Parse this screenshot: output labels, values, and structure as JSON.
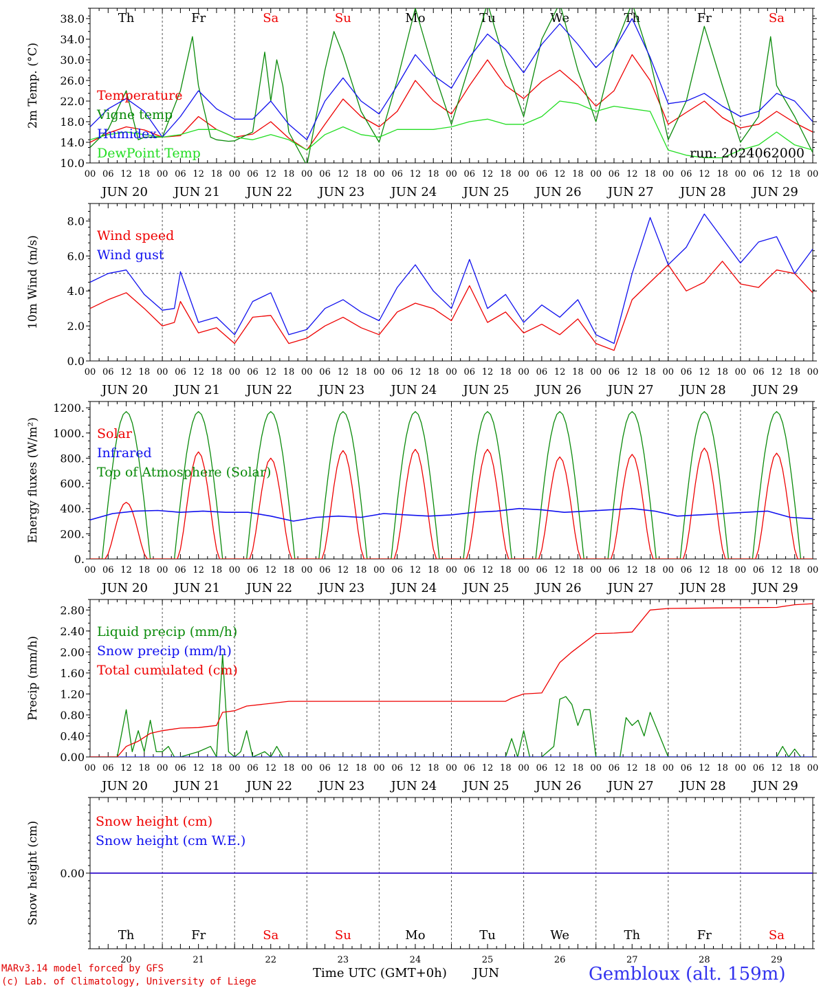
{
  "colors": {
    "red": "#ee0000",
    "green": "#0a8a0a",
    "blue": "#1010ee",
    "lightgreen": "#22dd22",
    "weekend": "#ee0000",
    "weekday": "#000000",
    "station": "#3333ee"
  },
  "days": {
    "names": [
      "Th",
      "Fr",
      "Sa",
      "Su",
      "Mo",
      "Tu",
      "We",
      "Th",
      "Fr",
      "Sa"
    ],
    "weekend": [
      false,
      false,
      true,
      true,
      false,
      false,
      false,
      false,
      false,
      true
    ],
    "dates": [
      "JUN 20",
      "JUN 21",
      "JUN 22",
      "JUN 23",
      "JUN 24",
      "JUN 25",
      "JUN 26",
      "JUN 27",
      "JUN 28",
      "JUN 29"
    ],
    "numbers": [
      "20",
      "21",
      "22",
      "23",
      "24",
      "25",
      "26",
      "27",
      "28",
      "29"
    ],
    "hour_ticks": [
      "00",
      "06",
      "12",
      "18"
    ],
    "final_hour": "00"
  },
  "footer": {
    "model": "MARv3.14 model forced by GFS",
    "copyright": "(c) Lab. of Climatology, University of Liege",
    "time_label": "Time UTC (GMT+0h)",
    "month": "JUN",
    "station": "Gembloux (alt. 159m)"
  },
  "chart_data": [
    {
      "id": "temperature",
      "type": "line",
      "ylabel": "2m Temp. (°C)",
      "ylim": [
        10,
        40
      ],
      "yticks": [
        "10.0",
        "14.0",
        "18.0",
        "22.0",
        "26.0",
        "30.0",
        "34.0",
        "38.0"
      ],
      "run_label": "run: 2024062000",
      "show_day_names": true,
      "legend": [
        {
          "name": "Temperature",
          "color": "red"
        },
        {
          "name": "Vigne temp",
          "color": "green"
        },
        {
          "name": "Humidex",
          "color": "blue"
        },
        {
          "name": "DewPoint Temp",
          "color": "lightgreen"
        }
      ],
      "series": [
        {
          "name": "Temperature",
          "color": "red",
          "x": [
            0,
            6,
            12,
            18,
            24,
            30,
            36,
            42,
            48,
            54,
            60,
            66,
            72,
            78,
            84,
            90,
            96,
            102,
            108,
            114,
            120,
            126,
            132,
            138,
            144,
            150,
            156,
            162,
            168,
            174,
            180,
            186,
            192,
            198,
            204,
            210,
            216,
            222,
            228,
            234,
            240
          ],
          "values": [
            14.0,
            15.8,
            17.0,
            16.4,
            15.0,
            15.3,
            19.0,
            16.5,
            15.0,
            15.6,
            18.0,
            14.8,
            12.5,
            17.5,
            22.4,
            19.0,
            17.0,
            20.0,
            26.0,
            22.0,
            19.5,
            25.0,
            30.0,
            25.0,
            22.5,
            25.8,
            28.0,
            25.0,
            21.0,
            24.0,
            31.0,
            26.0,
            17.5,
            19.8,
            22.0,
            18.8,
            16.8,
            17.5,
            20.0,
            17.8,
            16.0
          ]
        },
        {
          "name": "Vigne temp",
          "color": "green",
          "x": [
            0,
            6,
            12,
            16,
            18,
            24,
            30,
            34,
            36,
            40,
            42,
            46,
            48,
            54,
            58,
            60,
            62,
            64,
            66,
            72,
            78,
            81,
            84,
            90,
            96,
            102,
            108,
            114,
            120,
            126,
            132,
            138,
            144,
            150,
            156,
            162,
            168,
            174,
            180,
            186,
            192,
            198,
            204,
            210,
            216,
            222,
            226,
            228,
            234,
            240
          ],
          "values": [
            13.0,
            16.5,
            24.0,
            14.5,
            15.0,
            15.0,
            24.0,
            34.5,
            25.0,
            15.0,
            14.5,
            14.2,
            14.3,
            16.0,
            31.5,
            22.0,
            30.0,
            25.0,
            16.0,
            9.5,
            28.0,
            35.5,
            31.0,
            20.0,
            14.0,
            26.0,
            40.0,
            28.0,
            17.5,
            29.0,
            41.0,
            29.0,
            19.0,
            34.0,
            41.0,
            28.0,
            18.0,
            32.0,
            41.0,
            30.0,
            14.5,
            22.0,
            36.5,
            25.0,
            14.0,
            19.0,
            34.5,
            25.0,
            19.0,
            12.0
          ]
        },
        {
          "name": "Humidex",
          "color": "blue",
          "x": [
            0,
            6,
            12,
            18,
            24,
            30,
            36,
            42,
            48,
            54,
            60,
            66,
            72,
            78,
            84,
            90,
            96,
            102,
            108,
            114,
            120,
            126,
            132,
            138,
            144,
            150,
            156,
            162,
            168,
            174,
            180,
            186,
            192,
            198,
            204,
            210,
            216,
            222,
            228,
            234,
            240
          ],
          "values": [
            17.0,
            20.5,
            22.5,
            20.0,
            15.0,
            19.0,
            24.0,
            20.5,
            18.5,
            18.5,
            22.0,
            17.5,
            14.5,
            22.0,
            26.5,
            22.0,
            19.5,
            25.0,
            31.0,
            27.0,
            24.5,
            30.5,
            35.0,
            32.0,
            27.5,
            33.0,
            37.0,
            33.0,
            28.5,
            32.0,
            38.0,
            30.5,
            21.5,
            22.0,
            23.5,
            21.0,
            19.0,
            20.0,
            23.5,
            22.0,
            18.0
          ]
        },
        {
          "name": "DewPoint Temp",
          "color": "lightgreen",
          "x": [
            0,
            6,
            12,
            18,
            24,
            30,
            36,
            42,
            48,
            54,
            60,
            66,
            72,
            78,
            84,
            90,
            96,
            102,
            108,
            114,
            120,
            126,
            132,
            138,
            144,
            150,
            156,
            162,
            168,
            174,
            180,
            186,
            192,
            198,
            204,
            210,
            216,
            222,
            228,
            234,
            240
          ],
          "values": [
            14.5,
            15.5,
            16.0,
            15.5,
            15.0,
            15.5,
            16.5,
            16.5,
            15.0,
            14.5,
            15.5,
            14.5,
            12.5,
            15.5,
            17.0,
            15.5,
            15.0,
            16.5,
            16.5,
            16.5,
            17.0,
            18.0,
            18.5,
            17.5,
            17.5,
            19.0,
            22.0,
            21.5,
            20.0,
            21.0,
            20.5,
            20.0,
            12.5,
            11.5,
            11.0,
            11.0,
            12.5,
            13.5,
            16.0,
            13.5,
            12.5
          ]
        }
      ]
    },
    {
      "id": "wind",
      "type": "line",
      "ylabel": "10m Wind (m/s)",
      "ylim": [
        0,
        9
      ],
      "yticks": [
        "0.0",
        "2.0",
        "4.0",
        "6.0",
        "8.0"
      ],
      "reference_line": 5.0,
      "legend": [
        {
          "name": "Wind speed",
          "color": "red"
        },
        {
          "name": "Wind gust",
          "color": "blue"
        }
      ],
      "series": [
        {
          "name": "Wind speed",
          "color": "red",
          "x": [
            0,
            6,
            12,
            18,
            24,
            28,
            30,
            36,
            42,
            48,
            54,
            60,
            66,
            72,
            78,
            84,
            90,
            96,
            102,
            108,
            114,
            120,
            126,
            132,
            138,
            144,
            150,
            156,
            162,
            168,
            174,
            180,
            186,
            192,
            198,
            204,
            210,
            216,
            222,
            228,
            234,
            240
          ],
          "values": [
            3.0,
            3.5,
            3.9,
            3.0,
            2.0,
            2.2,
            3.4,
            1.6,
            1.9,
            1.0,
            2.5,
            2.6,
            1.0,
            1.3,
            2.0,
            2.5,
            1.9,
            1.5,
            2.8,
            3.3,
            3.0,
            2.3,
            4.3,
            2.2,
            2.8,
            1.6,
            2.1,
            1.5,
            2.4,
            1.0,
            0.6,
            3.5,
            4.5,
            5.5,
            4.0,
            4.5,
            5.7,
            4.4,
            4.2,
            5.2,
            5.0,
            3.9
          ]
        },
        {
          "name": "Wind gust",
          "color": "blue",
          "x": [
            0,
            6,
            12,
            18,
            24,
            28,
            30,
            36,
            42,
            48,
            54,
            60,
            66,
            72,
            78,
            84,
            90,
            96,
            102,
            108,
            114,
            120,
            126,
            132,
            138,
            144,
            150,
            156,
            162,
            168,
            174,
            180,
            186,
            192,
            198,
            204,
            210,
            216,
            222,
            228,
            234,
            240
          ],
          "values": [
            4.5,
            5.0,
            5.2,
            3.8,
            2.9,
            3.0,
            5.1,
            2.2,
            2.5,
            1.5,
            3.4,
            3.9,
            1.5,
            1.8,
            3.0,
            3.5,
            2.8,
            2.3,
            4.2,
            5.5,
            4.0,
            3.0,
            5.8,
            3.0,
            3.8,
            2.2,
            3.2,
            2.5,
            3.5,
            1.5,
            1.0,
            5.0,
            8.2,
            5.5,
            6.5,
            8.4,
            7.0,
            5.6,
            6.8,
            7.1,
            5.0,
            6.4
          ]
        }
      ]
    },
    {
      "id": "energy",
      "type": "line",
      "ylabel": "Energy fluxes (W/m²)",
      "ylim": [
        0,
        1250
      ],
      "yticks": [
        "0.",
        "200.",
        "400.",
        "600.",
        "800.",
        "1000.",
        "1200."
      ],
      "legend": [
        {
          "name": "Solar",
          "color": "red"
        },
        {
          "name": "Infrared",
          "color": "blue"
        },
        {
          "name": "Top of Atmosphere (Solar)",
          "color": "green"
        }
      ],
      "toa_peak": 1170,
      "solar_daily_peaks": [
        450,
        850,
        800,
        860,
        870,
        870,
        810,
        830,
        880,
        840
      ],
      "infrared": [
        310,
        360,
        380,
        385,
        370,
        380,
        370,
        370,
        340,
        300,
        330,
        340,
        330,
        360,
        350,
        340,
        350,
        370,
        380,
        400,
        390,
        370,
        380,
        390,
        400,
        380,
        340,
        350,
        360,
        370,
        380,
        330,
        320
      ]
    },
    {
      "id": "precip",
      "type": "line",
      "ylabel": "Precip (mm/h)",
      "ylim": [
        0,
        3.0
      ],
      "yticks": [
        "0.00",
        "0.40",
        "0.80",
        "1.20",
        "1.60",
        "2.00",
        "2.40",
        "2.80"
      ],
      "legend": [
        {
          "name": "Liquid precip (mm/h)",
          "color": "green"
        },
        {
          "name": "Snow precip (mm/h)",
          "color": "blue"
        },
        {
          "name": "Total cumulated (cm)",
          "color": "red"
        }
      ],
      "series": [
        {
          "name": "Liquid precip (mm/h)",
          "color": "green",
          "x": [
            0,
            9,
            12,
            14,
            16,
            18,
            20,
            22,
            24,
            26,
            28,
            30,
            36,
            40,
            42,
            44,
            45,
            46,
            48,
            50,
            52,
            54,
            58,
            60,
            62,
            64,
            66,
            72,
            120,
            138,
            140,
            142,
            144,
            146,
            150,
            154,
            156,
            158,
            160,
            162,
            164,
            166,
            168,
            174,
            176,
            178,
            180,
            182,
            184,
            186,
            192,
            228,
            230,
            232,
            234,
            236,
            240
          ],
          "values": [
            0,
            0,
            0.9,
            0.1,
            0.5,
            0.1,
            0.7,
            0.1,
            0.1,
            0.2,
            0,
            0,
            0.1,
            0.2,
            0,
            1.95,
            1.0,
            0.1,
            0,
            0.1,
            0.5,
            0,
            0.1,
            0,
            0.2,
            0,
            0,
            0,
            0,
            0,
            0.35,
            0,
            0.5,
            0,
            0,
            0.2,
            1.1,
            1.15,
            1.0,
            0.6,
            0.9,
            0.9,
            0,
            0,
            0,
            0.75,
            0.6,
            0.7,
            0.4,
            0.85,
            0,
            0,
            0.2,
            0,
            0.15,
            0,
            0
          ]
        },
        {
          "name": "Snow precip (mm/h)",
          "color": "blue",
          "x": [
            0,
            240
          ],
          "values": [
            0,
            0
          ]
        },
        {
          "name": "Total cumulated (cm)",
          "color": "red",
          "x": [
            0,
            9,
            12,
            16,
            20,
            24,
            30,
            36,
            42,
            44,
            48,
            52,
            60,
            66,
            72,
            90,
            114,
            138,
            140,
            144,
            150,
            156,
            160,
            168,
            174,
            180,
            186,
            192,
            210,
            228,
            234,
            240
          ],
          "values": [
            0,
            0,
            0.2,
            0.3,
            0.45,
            0.5,
            0.55,
            0.56,
            0.6,
            0.85,
            0.88,
            0.97,
            1.02,
            1.06,
            1.06,
            1.06,
            1.06,
            1.06,
            1.12,
            1.2,
            1.22,
            1.8,
            2.0,
            2.35,
            2.36,
            2.38,
            2.8,
            2.83,
            2.84,
            2.85,
            2.9,
            2.92
          ]
        }
      ]
    },
    {
      "id": "snow",
      "type": "line",
      "ylabel": "Snow height (cm)",
      "ylim": [
        -1,
        1
      ],
      "yticks": [
        "0.00"
      ],
      "show_day_names_bottom": true,
      "legend": [
        {
          "name": "Snow height (cm)",
          "color": "red"
        },
        {
          "name": "Snow height (cm W.E.)",
          "color": "blue"
        }
      ],
      "series": [
        {
          "name": "Snow height (cm)",
          "color": "red",
          "x": [
            0,
            240
          ],
          "values": [
            0,
            0
          ]
        },
        {
          "name": "Snow height (cm W.E.)",
          "color": "blue",
          "x": [
            0,
            240
          ],
          "values": [
            0,
            0
          ]
        }
      ]
    }
  ]
}
